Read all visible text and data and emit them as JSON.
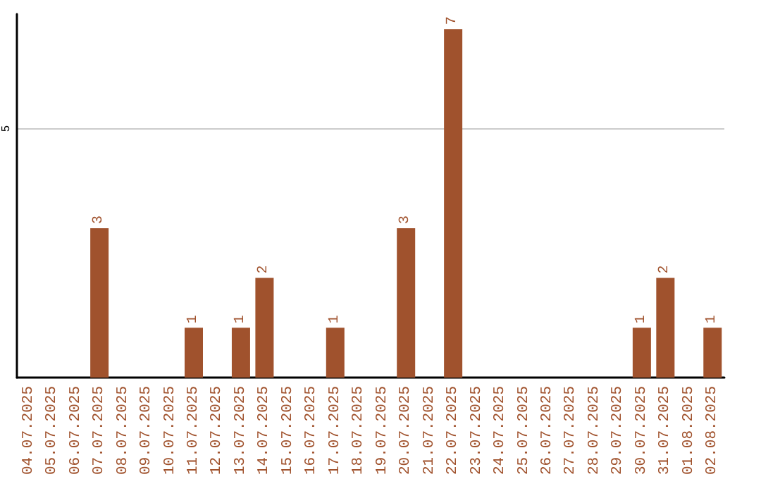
{
  "chart_data": {
    "type": "bar",
    "categories": [
      "04.07.2025",
      "05.07.2025",
      "06.07.2025",
      "07.07.2025",
      "08.07.2025",
      "09.07.2025",
      "10.07.2025",
      "11.07.2025",
      "12.07.2025",
      "13.07.2025",
      "14.07.2025",
      "15.07.2025",
      "16.07.2025",
      "17.07.2025",
      "18.07.2025",
      "19.07.2025",
      "20.07.2025",
      "21.07.2025",
      "22.07.2025",
      "23.07.2025",
      "24.07.2025",
      "25.07.2025",
      "26.07.2025",
      "27.07.2025",
      "28.07.2025",
      "29.07.2025",
      "30.07.2025",
      "31.07.2025",
      "01.08.2025",
      "02.08.2025"
    ],
    "values": [
      0,
      0,
      0,
      3,
      0,
      0,
      0,
      1,
      0,
      1,
      2,
      0,
      0,
      1,
      0,
      0,
      3,
      0,
      7,
      0,
      0,
      0,
      0,
      0,
      0,
      0,
      1,
      2,
      0,
      1
    ],
    "value_labels": [
      null,
      null,
      null,
      "3",
      null,
      null,
      null,
      "1",
      null,
      "1",
      "2",
      null,
      null,
      "1",
      null,
      null,
      "3",
      null,
      "7",
      null,
      null,
      null,
      null,
      null,
      null,
      null,
      "1",
      "2",
      null,
      "1"
    ],
    "color": "#a0522d",
    "ylim": [
      0,
      7.3
    ],
    "yticks": [
      5
    ],
    "grid": "y"
  }
}
